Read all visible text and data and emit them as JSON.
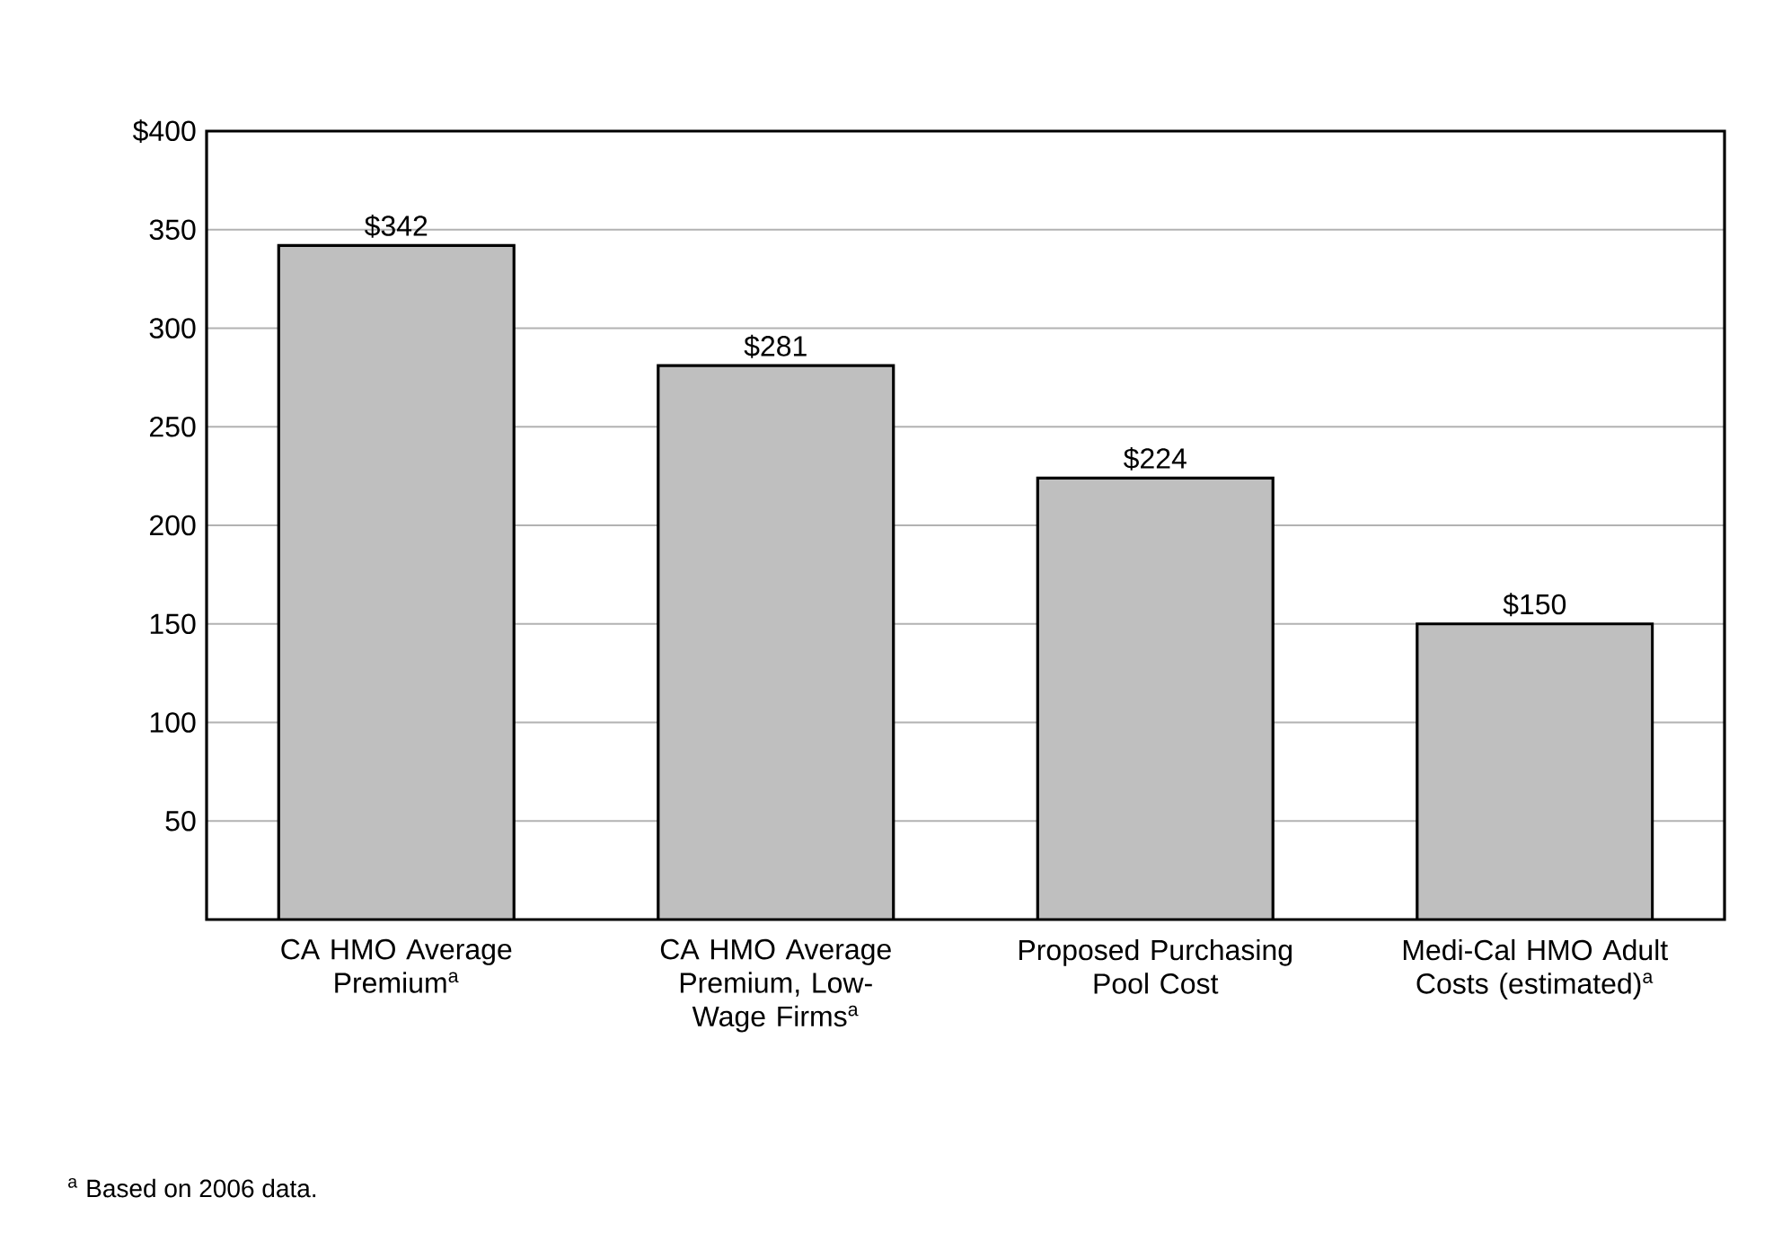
{
  "chart_data": {
    "type": "bar",
    "categories": [
      "CA HMO Average Premium$^{a}$",
      "CA HMO Average Premium, Low-Wage Firms$^{a}$",
      "Proposed Purchasing Pool Cost",
      "Medi-Cal HMO Adult Costs (estimated)$^{a}$"
    ],
    "values": [
      342,
      281,
      224,
      150
    ],
    "value_labels": [
      "$342",
      "$281",
      "$224",
      "$150"
    ],
    "color": "#bfbfbf",
    "ylim": [
      0,
      400
    ],
    "yticks": [
      50,
      100,
      150,
      200,
      250,
      300,
      350,
      {
        "value": 400,
        "label": "$400"
      }
    ],
    "grid": "y",
    "annotations": [
      "$^{a}$ Based on 2006 data."
    ]
  }
}
